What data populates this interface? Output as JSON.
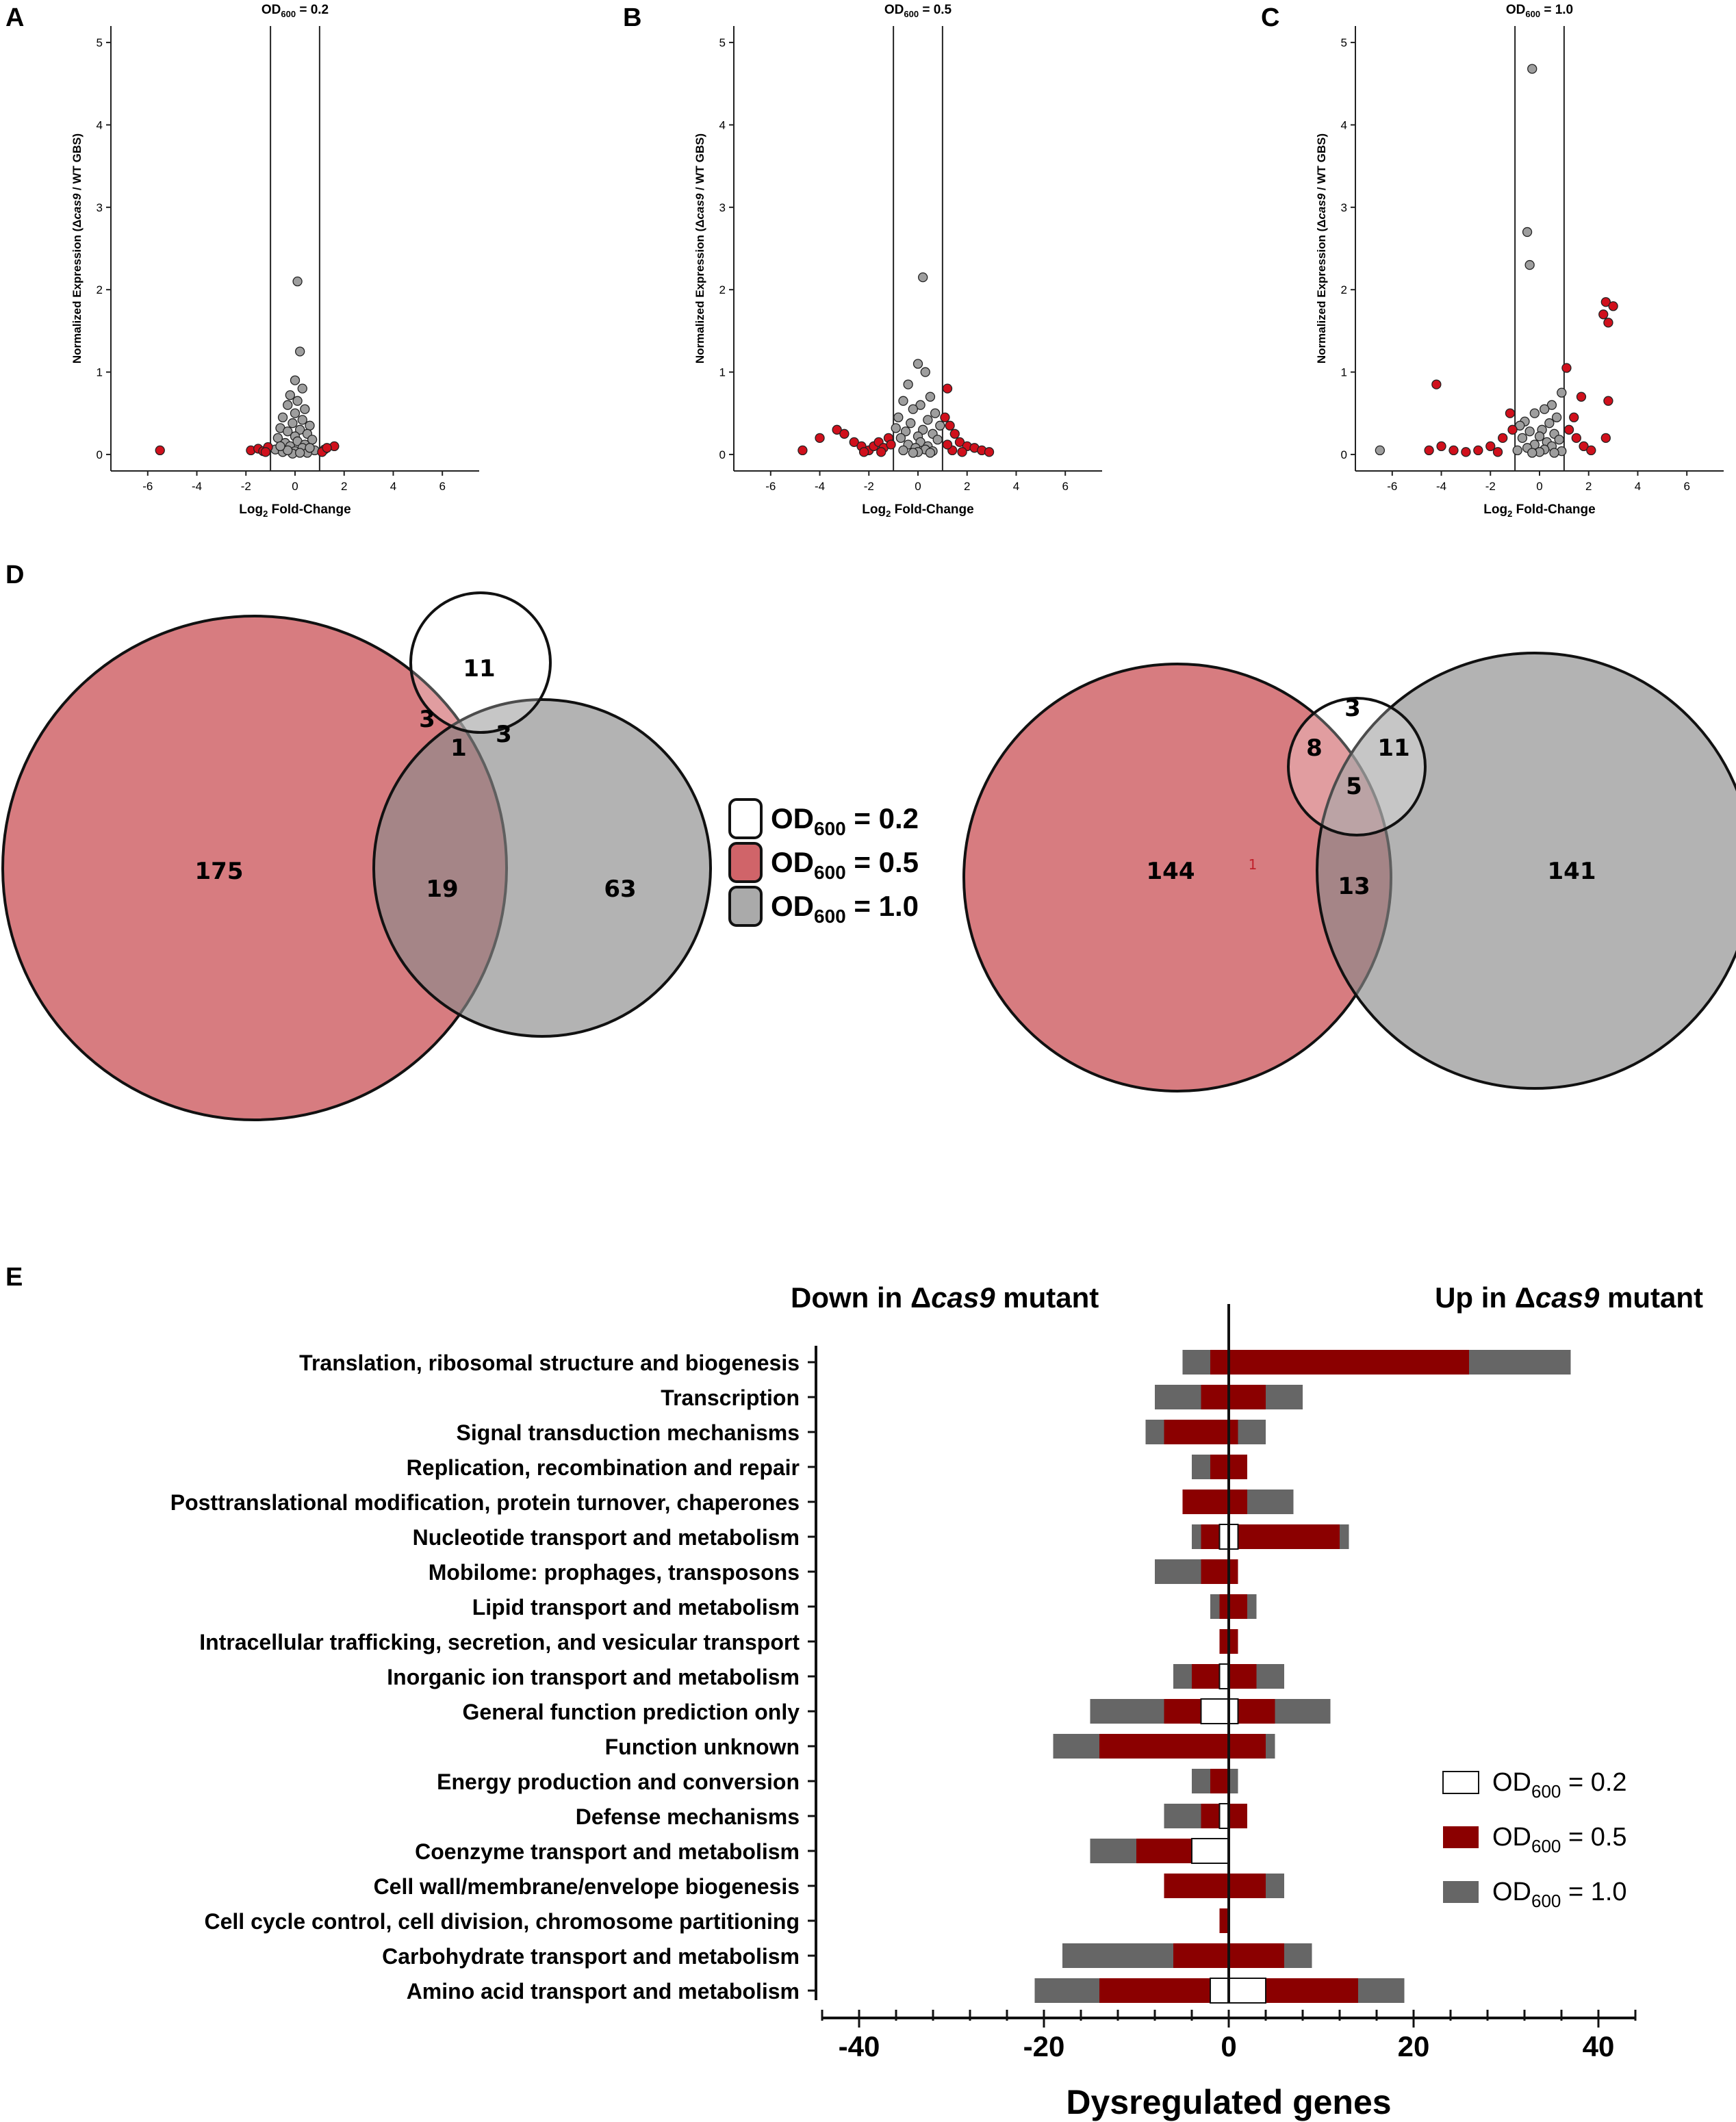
{
  "colors": {
    "red": "#c8494f",
    "grey": "#9b9b9b",
    "barDark": "#8b0000",
    "barGrey": "#666666",
    "pointGrey": "#9e9e9e",
    "pointRed": "#d0101c"
  },
  "panels": {
    "A": "A",
    "B": "B",
    "C": "C",
    "D": "D",
    "E": "E"
  },
  "chart_data": [
    {
      "type": "scatter",
      "panel": "A",
      "title": "OD600 = 0.2",
      "title_main": "OD",
      "title_sub": "600",
      "title_rest": " = 0.2",
      "xlabel": "Log2 Fold-Change",
      "xlabel_main": "Log",
      "xlabel_sub": "2",
      "xlabel_rest": " Fold-Change",
      "ylabel": "Normalized Expression (Δcas9 / WT GBS)",
      "ylabel_pre": "Normalized Expression (Δ",
      "ylabel_it": "cas9",
      "ylabel_post": " / WT GBS)",
      "xlim": [
        -7.5,
        7.5
      ],
      "ylim": [
        -0.2,
        5.2
      ],
      "xticks": [
        "-6",
        "-4",
        "-2",
        "0",
        "2",
        "4",
        "6"
      ],
      "yticks": [
        "0",
        "1",
        "2",
        "3",
        "4",
        "5"
      ],
      "thresholds": [
        -1,
        1
      ],
      "grey_points": [
        [
          0.1,
          2.1
        ],
        [
          0.2,
          1.25
        ],
        [
          0,
          0.9
        ],
        [
          0.3,
          0.8
        ],
        [
          -0.2,
          0.72
        ],
        [
          0.1,
          0.65
        ],
        [
          -0.3,
          0.6
        ],
        [
          0.4,
          0.55
        ],
        [
          0,
          0.5
        ],
        [
          -0.5,
          0.45
        ],
        [
          0.3,
          0.42
        ],
        [
          -0.1,
          0.38
        ],
        [
          0.6,
          0.35
        ],
        [
          -0.6,
          0.32
        ],
        [
          0.2,
          0.3
        ],
        [
          -0.3,
          0.28
        ],
        [
          0.5,
          0.25
        ],
        [
          0,
          0.22
        ],
        [
          -0.7,
          0.2
        ],
        [
          0.7,
          0.18
        ],
        [
          0.1,
          0.16
        ],
        [
          -0.4,
          0.14
        ],
        [
          0.4,
          0.12
        ],
        [
          -0.2,
          0.1
        ],
        [
          0.3,
          0.08
        ],
        [
          -0.8,
          0.06
        ],
        [
          0.8,
          0.05
        ],
        [
          0,
          0.04
        ],
        [
          -0.5,
          0.03
        ],
        [
          0.5,
          0.02
        ],
        [
          -0.1,
          0.01
        ],
        [
          0.2,
          0.02
        ],
        [
          -0.3,
          0.05
        ],
        [
          0.6,
          0.08
        ],
        [
          -0.6,
          0.1
        ]
      ],
      "red_points": [
        [
          -5.5,
          0.05
        ],
        [
          1.6,
          0.1
        ],
        [
          -1.8,
          0.05
        ],
        [
          -1.5,
          0.07
        ],
        [
          -1.3,
          0.04
        ],
        [
          -1.1,
          0.09
        ],
        [
          -1.2,
          0.03
        ],
        [
          1.2,
          0.06
        ],
        [
          1.1,
          0.03
        ],
        [
          1.3,
          0.08
        ]
      ]
    },
    {
      "type": "scatter",
      "panel": "B",
      "title": "OD600 = 0.5",
      "title_main": "OD",
      "title_sub": "600",
      "title_rest": " = 0.5",
      "xlabel": "Log2 Fold-Change",
      "xlabel_main": "Log",
      "xlabel_sub": "2",
      "xlabel_rest": " Fold-Change",
      "xlim": [
        -7.5,
        7.5
      ],
      "ylim": [
        -0.2,
        5.2
      ],
      "xticks": [
        "-6",
        "-4",
        "-2",
        "0",
        "2",
        "4",
        "6"
      ],
      "yticks": [
        "0",
        "1",
        "2",
        "3",
        "4",
        "5"
      ],
      "thresholds": [
        -1,
        1
      ],
      "grey_points": [
        [
          0.2,
          2.15
        ],
        [
          0,
          1.1
        ],
        [
          -0.4,
          0.85
        ],
        [
          0.3,
          1.0
        ],
        [
          0.5,
          0.7
        ],
        [
          -0.6,
          0.65
        ],
        [
          0.1,
          0.6
        ],
        [
          -0.2,
          0.55
        ],
        [
          0.7,
          0.5
        ],
        [
          -0.8,
          0.45
        ],
        [
          0.4,
          0.42
        ],
        [
          -0.3,
          0.38
        ],
        [
          0.9,
          0.35
        ],
        [
          -0.9,
          0.32
        ],
        [
          0.2,
          0.3
        ],
        [
          -0.5,
          0.28
        ],
        [
          0.6,
          0.25
        ],
        [
          0,
          0.22
        ],
        [
          -0.7,
          0.2
        ],
        [
          0.8,
          0.18
        ],
        [
          0.1,
          0.15
        ],
        [
          -0.4,
          0.12
        ],
        [
          0.4,
          0.1
        ],
        [
          -0.1,
          0.08
        ],
        [
          0.3,
          0.06
        ],
        [
          -0.6,
          0.05
        ],
        [
          0.6,
          0.04
        ],
        [
          0,
          0.03
        ],
        [
          -0.2,
          0.02
        ],
        [
          0.5,
          0.02
        ]
      ],
      "red_points": [
        [
          -4.7,
          0.05
        ],
        [
          -4,
          0.2
        ],
        [
          -3.3,
          0.3
        ],
        [
          -3,
          0.25
        ],
        [
          -2.6,
          0.15
        ],
        [
          -2.3,
          0.1
        ],
        [
          -2,
          0.05
        ],
        [
          -1.8,
          0.1
        ],
        [
          -1.6,
          0.15
        ],
        [
          -1.4,
          0.08
        ],
        [
          -1.2,
          0.2
        ],
        [
          -1.1,
          0.12
        ],
        [
          -2.2,
          0.03
        ],
        [
          -1.5,
          0.03
        ],
        [
          1.2,
          0.8
        ],
        [
          1.1,
          0.45
        ],
        [
          1.3,
          0.35
        ],
        [
          1.5,
          0.25
        ],
        [
          1.7,
          0.15
        ],
        [
          2,
          0.1
        ],
        [
          2.3,
          0.08
        ],
        [
          2.6,
          0.05
        ],
        [
          2.9,
          0.03
        ],
        [
          1.4,
          0.05
        ],
        [
          1.8,
          0.03
        ],
        [
          1.2,
          0.12
        ]
      ]
    },
    {
      "type": "scatter",
      "panel": "C",
      "title": "OD600 = 1.0",
      "title_main": "OD",
      "title_sub": "600",
      "title_rest": " = 1.0",
      "xlabel": "Log2 Fold-Change",
      "xlabel_main": "Log",
      "xlabel_sub": "2",
      "xlabel_rest": " Fold-Change",
      "ylabel": "Normalized Expression (Δcas9 / WT GBS)",
      "ylabel_pre": "Normalized Expression (Δ",
      "ylabel_it": "cas9",
      "ylabel_post": " / WT GBS)",
      "xlim": [
        -7.5,
        7.5
      ],
      "ylim": [
        -0.2,
        5.2
      ],
      "xticks": [
        "-6",
        "-4",
        "-2",
        "0",
        "2",
        "4",
        "6"
      ],
      "yticks": [
        "0",
        "1",
        "2",
        "3",
        "4",
        "5"
      ],
      "thresholds": [
        -1,
        1
      ],
      "grey_points": [
        [
          -0.3,
          4.68
        ],
        [
          -0.5,
          2.7
        ],
        [
          -0.4,
          2.3
        ],
        [
          -6.5,
          0.05
        ],
        [
          0.9,
          0.75
        ],
        [
          0.5,
          0.6
        ],
        [
          0.2,
          0.55
        ],
        [
          -0.2,
          0.5
        ],
        [
          0.7,
          0.45
        ],
        [
          -0.6,
          0.4
        ],
        [
          0.4,
          0.38
        ],
        [
          -0.8,
          0.35
        ],
        [
          0.1,
          0.3
        ],
        [
          -0.4,
          0.28
        ],
        [
          0.6,
          0.25
        ],
        [
          0,
          0.22
        ],
        [
          -0.7,
          0.2
        ],
        [
          0.8,
          0.18
        ],
        [
          0.3,
          0.15
        ],
        [
          -0.2,
          0.12
        ],
        [
          0.5,
          0.1
        ],
        [
          -0.5,
          0.08
        ],
        [
          0.2,
          0.06
        ],
        [
          -0.9,
          0.05
        ],
        [
          0.9,
          0.04
        ],
        [
          0,
          0.03
        ],
        [
          -0.3,
          0.02
        ],
        [
          0.6,
          0.02
        ]
      ],
      "red_points": [
        [
          2.7,
          1.85
        ],
        [
          3,
          1.8
        ],
        [
          2.6,
          1.7
        ],
        [
          2.8,
          1.6
        ],
        [
          2.8,
          0.65
        ],
        [
          2.7,
          0.2
        ],
        [
          -4.2,
          0.85
        ],
        [
          1.1,
          1.05
        ],
        [
          1.7,
          0.7
        ],
        [
          1.4,
          0.45
        ],
        [
          1.2,
          0.3
        ],
        [
          1.5,
          0.2
        ],
        [
          1.8,
          0.1
        ],
        [
          2.1,
          0.05
        ],
        [
          -1.2,
          0.5
        ],
        [
          -1.5,
          0.2
        ],
        [
          -2,
          0.1
        ],
        [
          -2.5,
          0.05
        ],
        [
          -3,
          0.03
        ],
        [
          -3.5,
          0.05
        ],
        [
          -4,
          0.1
        ],
        [
          -4.5,
          0.05
        ],
        [
          -1.1,
          0.3
        ],
        [
          -1.7,
          0.03
        ]
      ]
    },
    {
      "type": "venn",
      "panel": "D",
      "legend": [
        "OD600 = 0.2",
        "OD600 = 0.5",
        "OD600 = 1.0"
      ],
      "legend_items": [
        {
          "main": "OD",
          "sub": "600",
          "rest": " = 0.2",
          "fill": "#ffffff"
        },
        {
          "main": "OD",
          "sub": "600",
          "rest": " = 0.5",
          "fill": "#c8494f"
        },
        {
          "main": "OD",
          "sub": "600",
          "rest": " = 1.0",
          "fill": "#9b9b9b"
        }
      ],
      "left": {
        "only_05": "175",
        "only_02": "11",
        "only_10": "63",
        "s02_05": "3",
        "s02_10": "3",
        "s02_05_10": "1",
        "s05_10": "19"
      },
      "right": {
        "only_05": "144",
        "only_02": "3",
        "only_10": "141",
        "s02_05": "8",
        "s02_10": "11",
        "s02_05_10": "5",
        "s05_10": "13",
        "stray": "1"
      }
    },
    {
      "type": "bar",
      "panel": "E",
      "orientation": "horizontal",
      "down_title": "Down in Δcas9 mutant",
      "down_pre": "Down in Δ",
      "down_it": "cas9",
      "down_post": " mutant",
      "up_title": "Up in Δcas9 mutant",
      "up_pre": "Up in Δ",
      "up_it": "cas9",
      "up_post": " mutant",
      "xlabel": "Dysregulated genes",
      "xlim": [
        -45,
        45
      ],
      "xticks": [
        "-40",
        "-20",
        "0",
        "20",
        "40"
      ],
      "categories": [
        "Translation, ribosomal structure and biogenesis",
        "Transcription",
        "Signal transduction mechanisms",
        "Replication, recombination and repair",
        "Posttranslational modification, protein turnover, chaperones",
        "Nucleotide transport and metabolism",
        "Mobilome: prophages, transposons",
        "Lipid transport and metabolism",
        "Intracellular trafficking, secretion, and vesicular transport",
        "Inorganic ion transport and metabolism",
        "General function prediction only",
        "Function unknown",
        "Energy production and conversion",
        "Defense mechanisms",
        "Coenzyme transport and metabolism",
        "Cell wall/membrane/envelope biogenesis",
        "Cell cycle control, cell division, chromosome partitioning",
        "Carbohydrate transport and metabolism",
        "Amino acid transport and metabolism"
      ],
      "series": [
        {
          "name": "OD600 = 1.0",
          "down": [
            -5,
            -8,
            -9,
            -4,
            0,
            -4,
            -8,
            -2,
            0,
            -6,
            -15,
            -19,
            -4,
            -7,
            -15,
            0,
            0,
            -18,
            -21
          ],
          "up": [
            37,
            8,
            4,
            0,
            7,
            13,
            0,
            3,
            0,
            6,
            11,
            5,
            1,
            0,
            0,
            6,
            0,
            9,
            19
          ]
        },
        {
          "name": "OD600 = 0.5",
          "down": [
            -2,
            -3,
            -7,
            -2,
            -5,
            -3,
            -3,
            -1,
            -1,
            -4,
            -7,
            -14,
            -2,
            -3,
            -10,
            -7,
            -1,
            -6,
            -14
          ]
        },
        {
          "name": "OD600 = 0.2",
          "down": [
            0,
            0,
            0,
            0,
            0,
            -1,
            0,
            0,
            0,
            -1,
            -3,
            0,
            0,
            -1,
            -4,
            0,
            0,
            0,
            -2
          ],
          "up": [
            0,
            0,
            0,
            0,
            0,
            1,
            0,
            0,
            0,
            0,
            1,
            0,
            0,
            0,
            0,
            0,
            0,
            0,
            4
          ]
        }
      ],
      "up_05": [
        26,
        4,
        1,
        2,
        2,
        12,
        1,
        2,
        1,
        3,
        5,
        4,
        0,
        2,
        0,
        4,
        0,
        6,
        14
      ],
      "legend_items": [
        {
          "main": "OD",
          "sub": "600",
          "rest": " = 0.2",
          "fill": "#ffffff"
        },
        {
          "main": "OD",
          "sub": "600",
          "rest": " = 0.5",
          "fill": "#8b0000"
        },
        {
          "main": "OD",
          "sub": "600",
          "rest": " = 1.0",
          "fill": "#666666"
        }
      ]
    }
  ]
}
